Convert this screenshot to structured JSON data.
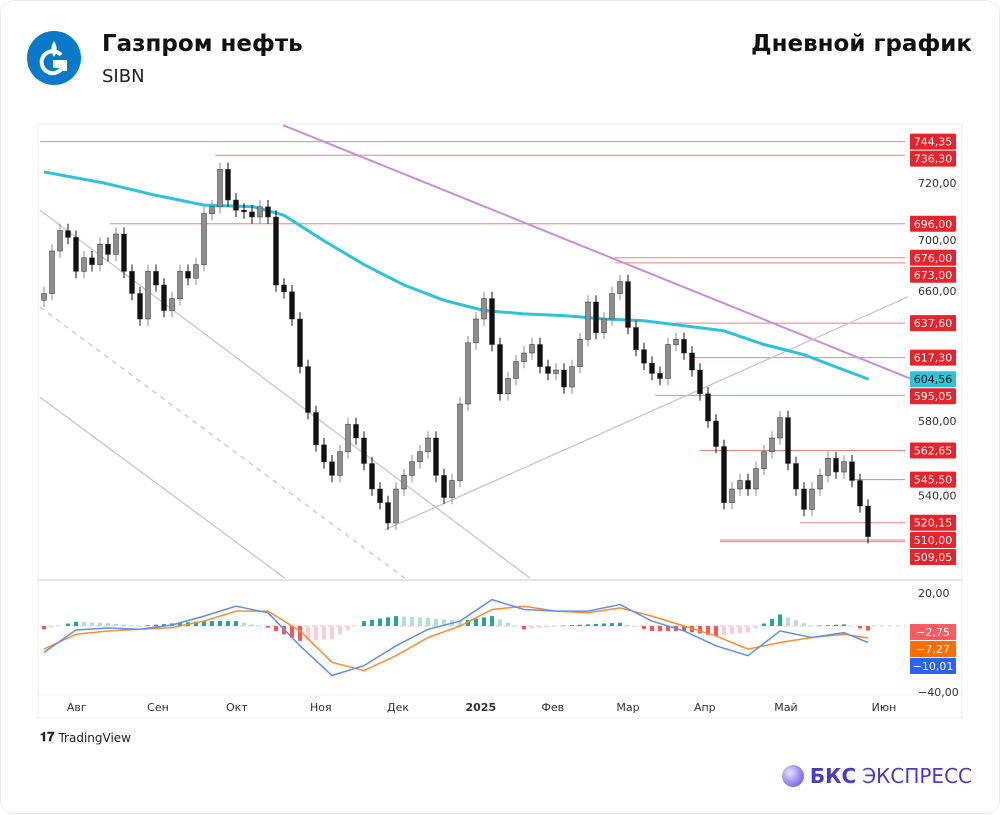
{
  "header": {
    "company": "Газпром нефть",
    "ticker": "SIBN",
    "chart_title": "Дневной график"
  },
  "footer": {
    "tradingview": "TradingView",
    "brand_bold": "БКС",
    "brand_rest": "ЭКСПРЕСС"
  },
  "colors": {
    "up": "#8e8e8e",
    "down": "#111111",
    "ma": "#2cc4d8",
    "trend_purple": "#c88fd8",
    "trend_gray": "#c8c8c8",
    "level": "#f08080",
    "level_label": "#e8232b",
    "macd": "#5b8ff9",
    "signal": "#ff8c2a",
    "hist_up": "#26a69a",
    "hist_up_light": "#b2dfdb",
    "hist_down": "#ff5252",
    "hist_down_light": "#ffcdd2"
  },
  "chart_data": {
    "type": "candlestick",
    "price_axis": {
      "ticks": [
        "720,00",
        "700,00",
        "660,00",
        "580,00",
        "540,00"
      ],
      "tick_values": [
        720,
        700,
        660,
        580,
        540
      ],
      "range": [
        487.6,
        754
      ]
    },
    "x_axis": {
      "labels": [
        "Авг",
        "Сен",
        "Окт",
        "Ноя",
        "Дек",
        "2025",
        "Фев",
        "Мар",
        "Апр",
        "Май",
        "Июн"
      ],
      "label_index": [
        4.6,
        14.75,
        24.6,
        35.1,
        44.75,
        55.1,
        64.1,
        73.5,
        83.1,
        93.25,
        105.5
      ]
    },
    "closes": [
      655,
      680,
      692,
      688,
      668,
      676,
      672,
      684,
      678,
      690,
      668,
      655,
      640,
      668,
      660,
      645,
      652,
      668,
      664,
      672,
      702,
      706,
      728,
      710,
      704,
      703,
      700,
      706,
      700,
      660,
      656,
      640,
      612,
      585,
      566,
      556,
      548,
      562,
      578,
      570,
      555,
      540,
      532,
      520,
      540,
      548,
      556,
      562,
      570,
      548,
      535,
      545,
      590,
      626,
      640,
      652,
      625,
      596,
      605,
      615,
      620,
      625,
      612,
      608,
      610,
      600,
      612,
      628,
      650,
      632,
      640,
      655,
      662,
      635,
      622,
      614,
      608,
      605,
      625,
      628,
      620,
      610,
      596,
      580,
      565,
      532,
      540,
      545,
      540,
      552,
      562,
      570,
      582,
      555,
      540,
      528,
      540,
      548,
      558,
      550,
      556,
      545,
      530,
      512
    ],
    "ma200": {
      "index": [
        0,
        7.5,
        13.75,
        20,
        26.25,
        30,
        35,
        40,
        45,
        50,
        55,
        60,
        65,
        70,
        75,
        80,
        85,
        90,
        95,
        100,
        103.1
      ],
      "values": [
        726.5,
        720,
        713,
        707,
        706,
        701,
        686,
        672,
        660,
        651,
        645,
        643,
        642,
        640,
        639,
        636,
        633,
        625,
        619,
        610,
        604.56
      ]
    },
    "levels": [
      {
        "value": 744.35,
        "label": "744,35",
        "from_index": 0
      },
      {
        "value": 736.3,
        "label": "736,30",
        "from_index": 21.9
      },
      {
        "value": 696.0,
        "label": "696,00",
        "from_index": 8.75
      },
      {
        "value": 676.0,
        "label": "676,00",
        "from_index": 71.9
      },
      {
        "value": 673.0,
        "label": "673,00",
        "from_index": 71.9
      },
      {
        "value": 637.6,
        "label": "637,60",
        "from_index": 78.75
      },
      {
        "value": 617.3,
        "label": "617,30",
        "from_index": 81.25
      },
      {
        "value": 595.05,
        "label": "595,05",
        "from_index": 76.9
      },
      {
        "value": 562.65,
        "label": "562,65",
        "from_index": 82.5
      },
      {
        "value": 545.5,
        "label": "545,50",
        "from_index": 101.25
      },
      {
        "value": 520.15,
        "label": "520,15",
        "from_index": 95
      },
      {
        "value": 510.0,
        "label": "510,00",
        "from_index": 85
      },
      {
        "value": 509.05,
        "label": "509,05",
        "from_index": 85
      }
    ],
    "ma_label": "604,56",
    "trendlines": [
      {
        "style": "purple",
        "from": [
          30.4,
          754
        ],
        "to": [
          108.75,
          605
        ]
      },
      {
        "style": "gray",
        "from": [
          43.1,
          516
        ],
        "to": [
          108.5,
          653
        ]
      },
      {
        "style": "gray",
        "from": [
          0,
          704
        ],
        "to": [
          61.25,
          487.6
        ]
      },
      {
        "style": "gray-dashed",
        "from": [
          0,
          647
        ],
        "to": [
          45.6,
          487.6
        ]
      },
      {
        "style": "gray",
        "from": [
          0,
          594
        ],
        "to": [
          30.6,
          487.6
        ]
      }
    ],
    "macd": {
      "ticks": [
        "20,00",
        "-40,00"
      ],
      "tick_values": [
        20,
        -40
      ],
      "sample_index": [
        0,
        4,
        8,
        12,
        16,
        20,
        24,
        28,
        32,
        36,
        40,
        44,
        48,
        52,
        56,
        60,
        64,
        68,
        72,
        76,
        80,
        84,
        88,
        92,
        96,
        100,
        103
      ],
      "macd": [
        -16,
        -2.4,
        -1.2,
        -2,
        0.6,
        6,
        12,
        8,
        -12,
        -30,
        -24,
        -12,
        -2,
        3,
        16,
        10,
        9,
        9,
        13,
        3,
        -3,
        -12,
        -18,
        -3,
        -7,
        -4,
        -10.01
      ],
      "signal": [
        -14,
        -5,
        -3,
        -2,
        -1,
        3,
        9,
        9,
        -3,
        -22,
        -27,
        -18,
        -7,
        0,
        10,
        12,
        9,
        8,
        11,
        6,
        0,
        -6,
        -14,
        -10,
        -7,
        -5,
        -7.27
      ],
      "labels": {
        "hist": "-2,75",
        "signal": "-7,27",
        "macd": "-10,01"
      }
    }
  }
}
